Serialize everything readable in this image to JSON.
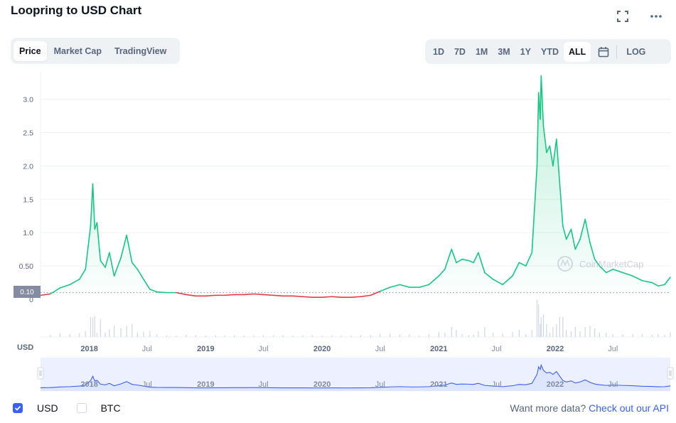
{
  "header": {
    "title": "Loopring to USD Chart",
    "fullscreen_icon": "fullscreen-icon",
    "more_icon": "more-dots-icon"
  },
  "tabs": [
    {
      "label": "Price",
      "active": true
    },
    {
      "label": "Market Cap",
      "active": false
    },
    {
      "label": "TradingView",
      "active": false
    }
  ],
  "ranges": [
    {
      "label": "1D"
    },
    {
      "label": "7D"
    },
    {
      "label": "1M"
    },
    {
      "label": "3M"
    },
    {
      "label": "1Y"
    },
    {
      "label": "YTD"
    },
    {
      "label": "ALL",
      "active": true
    }
  ],
  "calendar_icon": "calendar-icon",
  "log_label": "LOG",
  "currency_label": "USD",
  "watermark": "CoinMarketCap",
  "current_price_label": "0.10",
  "footer": {
    "toggles": [
      {
        "label": "USD",
        "checked": true
      },
      {
        "label": "BTC",
        "checked": false
      }
    ],
    "more_text": "Want more data?",
    "api_link": "Check out our API"
  },
  "colors": {
    "up": "#16c784",
    "down": "#ea3943",
    "navigator": "#3861fb",
    "brand": "#3861fb"
  },
  "chart_data": {
    "type": "line",
    "title": "Loopring to USD Chart",
    "ylabel": "USD",
    "ylim": [
      0,
      3.4
    ],
    "yticks": [
      0,
      0.5,
      1.0,
      1.5,
      2.0,
      2.5,
      3.0
    ],
    "ytick_labels": [
      "0",
      "0.50",
      "1.0",
      "1.5",
      "2.0",
      "2.5",
      "3.0"
    ],
    "xlim": [
      "2017-08-01",
      "2022-12-28"
    ],
    "xticks": [
      {
        "date": "2018-01-01",
        "label": "2018"
      },
      {
        "date": "2018-07-01",
        "label": "Jul"
      },
      {
        "date": "2019-01-01",
        "label": "2019"
      },
      {
        "date": "2019-07-01",
        "label": "Jul"
      },
      {
        "date": "2020-01-01",
        "label": "2020"
      },
      {
        "date": "2020-07-01",
        "label": "Jul"
      },
      {
        "date": "2021-01-01",
        "label": "2021"
      },
      {
        "date": "2021-07-01",
        "label": "Jul"
      },
      {
        "date": "2022-01-01",
        "label": "2022"
      },
      {
        "date": "2022-07-01",
        "label": "Jul"
      }
    ],
    "baseline": 0.1,
    "grid": true,
    "series": [
      {
        "points": [
          [
            "2017-08-01",
            0.06
          ],
          [
            "2017-09-01",
            0.08
          ],
          [
            "2017-10-01",
            0.17
          ],
          [
            "2017-11-01",
            0.22
          ],
          [
            "2017-12-01",
            0.3
          ],
          [
            "2017-12-20",
            0.45
          ],
          [
            "2018-01-05",
            1.1
          ],
          [
            "2018-01-12",
            1.73
          ],
          [
            "2018-01-18",
            1.05
          ],
          [
            "2018-01-25",
            1.15
          ],
          [
            "2018-02-05",
            0.58
          ],
          [
            "2018-02-20",
            0.48
          ],
          [
            "2018-03-05",
            0.7
          ],
          [
            "2018-03-20",
            0.35
          ],
          [
            "2018-04-10",
            0.62
          ],
          [
            "2018-04-28",
            0.96
          ],
          [
            "2018-05-15",
            0.55
          ],
          [
            "2018-06-01",
            0.45
          ],
          [
            "2018-06-20",
            0.3
          ],
          [
            "2018-07-10",
            0.15
          ],
          [
            "2018-08-01",
            0.11
          ],
          [
            "2018-09-01",
            0.1
          ],
          [
            "2018-10-01",
            0.1
          ],
          [
            "2018-11-01",
            0.07
          ],
          [
            "2018-12-01",
            0.05
          ],
          [
            "2019-01-01",
            0.05
          ],
          [
            "2019-02-01",
            0.06
          ],
          [
            "2019-03-01",
            0.06
          ],
          [
            "2019-04-01",
            0.07
          ],
          [
            "2019-05-01",
            0.07
          ],
          [
            "2019-06-01",
            0.08
          ],
          [
            "2019-07-01",
            0.07
          ],
          [
            "2019-08-01",
            0.06
          ],
          [
            "2019-09-01",
            0.05
          ],
          [
            "2019-10-01",
            0.05
          ],
          [
            "2019-11-01",
            0.04
          ],
          [
            "2019-12-01",
            0.03
          ],
          [
            "2020-01-01",
            0.03
          ],
          [
            "2020-02-01",
            0.04
          ],
          [
            "2020-03-01",
            0.03
          ],
          [
            "2020-04-01",
            0.03
          ],
          [
            "2020-05-01",
            0.04
          ],
          [
            "2020-06-01",
            0.06
          ],
          [
            "2020-07-01",
            0.12
          ],
          [
            "2020-08-01",
            0.18
          ],
          [
            "2020-09-01",
            0.22
          ],
          [
            "2020-10-01",
            0.18
          ],
          [
            "2020-11-01",
            0.18
          ],
          [
            "2020-12-01",
            0.22
          ],
          [
            "2021-01-01",
            0.35
          ],
          [
            "2021-01-20",
            0.45
          ],
          [
            "2021-02-10",
            0.75
          ],
          [
            "2021-02-25",
            0.55
          ],
          [
            "2021-03-15",
            0.6
          ],
          [
            "2021-04-05",
            0.58
          ],
          [
            "2021-04-20",
            0.55
          ],
          [
            "2021-05-05",
            0.7
          ],
          [
            "2021-05-25",
            0.4
          ],
          [
            "2021-06-20",
            0.3
          ],
          [
            "2021-07-20",
            0.22
          ],
          [
            "2021-08-20",
            0.35
          ],
          [
            "2021-09-10",
            0.55
          ],
          [
            "2021-10-01",
            0.5
          ],
          [
            "2021-10-20",
            0.7
          ],
          [
            "2021-11-05",
            2.0
          ],
          [
            "2021-11-10",
            3.1
          ],
          [
            "2021-11-15",
            2.7
          ],
          [
            "2021-11-18",
            3.35
          ],
          [
            "2021-11-25",
            2.6
          ],
          [
            "2021-12-05",
            2.2
          ],
          [
            "2021-12-15",
            2.3
          ],
          [
            "2021-12-25",
            2.0
          ],
          [
            "2022-01-05",
            2.4
          ],
          [
            "2022-01-15",
            1.75
          ],
          [
            "2022-01-25",
            1.1
          ],
          [
            "2022-02-05",
            0.9
          ],
          [
            "2022-02-20",
            1.05
          ],
          [
            "2022-03-05",
            0.75
          ],
          [
            "2022-03-20",
            0.9
          ],
          [
            "2022-04-05",
            1.2
          ],
          [
            "2022-04-20",
            0.85
          ],
          [
            "2022-05-05",
            0.6
          ],
          [
            "2022-05-20",
            0.5
          ],
          [
            "2022-06-10",
            0.4
          ],
          [
            "2022-07-01",
            0.45
          ],
          [
            "2022-08-01",
            0.4
          ],
          [
            "2022-09-01",
            0.35
          ],
          [
            "2022-10-01",
            0.28
          ],
          [
            "2022-11-01",
            0.25
          ],
          [
            "2022-11-20",
            0.2
          ],
          [
            "2022-12-10",
            0.22
          ],
          [
            "2022-12-28",
            0.33
          ]
        ]
      }
    ]
  }
}
